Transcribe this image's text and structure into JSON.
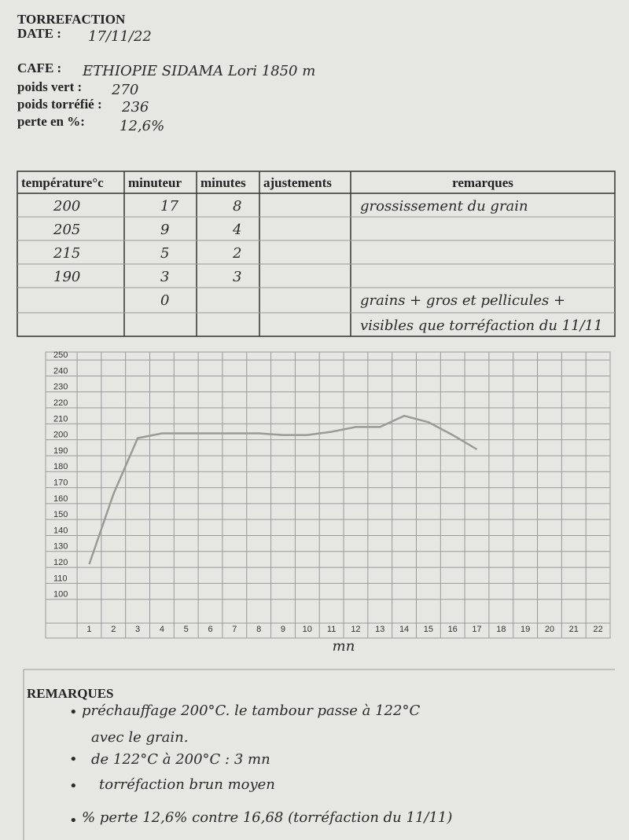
{
  "header": {
    "title": "TORREFACTION",
    "date_label": "DATE :",
    "date": "17/11/22",
    "cafe_label": "CAFE :",
    "cafe": "ETHIOPIE SIDAMA Lori 1850 m",
    "poids_vert_label": "poids vert :",
    "poids_vert": "270",
    "poids_torrefie_label": "poids torréfié :",
    "poids_torrefie": "236",
    "perte_label": "perte en %:",
    "perte": "12,6%"
  },
  "table": {
    "headers": [
      "température°c",
      "minuteur",
      "minutes",
      "ajustements",
      "remarques"
    ],
    "rows": [
      {
        "temperature": "200",
        "minuteur": "17",
        "minutes": "8",
        "remarques": "grossissement du grain"
      },
      {
        "temperature": "205",
        "minuteur": "9",
        "minutes": "4"
      },
      {
        "temperature": "215",
        "minuteur": "5",
        "minutes": "2"
      },
      {
        "temperature": "190",
        "minuteur": "3",
        "minutes": "3"
      },
      {
        "minuteur": "0",
        "remarques": "grains + gros et pellicules +"
      },
      {
        "remarques": "visibles que torréfaction du 11/11"
      }
    ]
  },
  "chart": {
    "type": "line",
    "x_label": "mn",
    "x": [
      1,
      2,
      3,
      4,
      5,
      6,
      7,
      8,
      9,
      10,
      11,
      12,
      13,
      14,
      15,
      16,
      17
    ],
    "values": [
      122,
      166,
      201,
      204,
      204,
      204,
      204,
      204,
      203,
      203,
      205,
      208,
      208,
      215,
      211,
      203,
      194
    ],
    "color": "#9a9a96",
    "xlim": [
      -0.8,
      22.5
    ],
    "xticks": [
      1,
      2,
      3,
      4,
      5,
      6,
      7,
      8,
      9,
      10,
      11,
      12,
      13,
      14,
      15,
      16,
      17,
      18,
      19,
      20,
      21,
      22
    ],
    "ylim": [
      90,
      255
    ],
    "yticks": [
      100,
      110,
      120,
      130,
      140,
      150,
      160,
      170,
      180,
      190,
      200,
      210,
      220,
      230,
      240,
      250
    ],
    "grid": true
  },
  "remarks": {
    "title": "REMARQUES",
    "lines": [
      "préchauffage 200°C. le tambour passe à 122°C",
      "avec le grain.",
      "de 122°C à 200°C :  3 mn",
      "torréfaction brun moyen",
      "% perte 12,6% contre 16,68 (torréfaction du 11/11)"
    ]
  }
}
